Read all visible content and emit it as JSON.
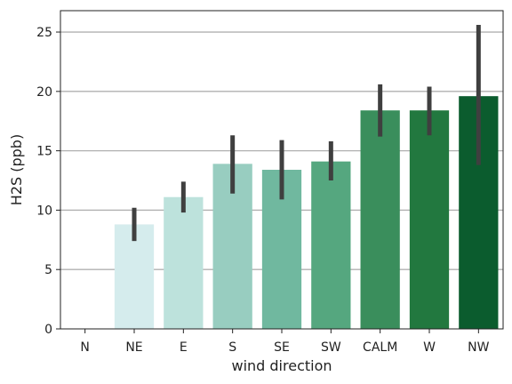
{
  "chart_data": {
    "type": "bar",
    "title": "",
    "xlabel": "wind direction",
    "ylabel": "H2S (ppb)",
    "categories": [
      "N",
      "NE",
      "E",
      "S",
      "SE",
      "SW",
      "CALM",
      "W",
      "NW"
    ],
    "values": [
      0,
      8.8,
      11.1,
      13.9,
      13.4,
      14.1,
      18.4,
      18.4,
      19.6
    ],
    "error_low": [
      0,
      7.4,
      9.8,
      11.4,
      10.9,
      12.5,
      16.2,
      16.3,
      13.8
    ],
    "error_high": [
      0,
      10.2,
      12.4,
      16.3,
      15.9,
      15.8,
      20.6,
      20.4,
      25.6
    ],
    "ylim": [
      0,
      26.8
    ],
    "yticks": [
      0,
      5,
      10,
      15,
      20,
      25
    ],
    "grid": "y",
    "colors": [
      "#e5f5f9",
      "#d5eced",
      "#bde2dc",
      "#98cdc0",
      "#70b89f",
      "#55a77f",
      "#3a8e5c",
      "#22783f",
      "#0b5c2e"
    ],
    "error_color": "#3f3f3f",
    "grid_color": "#b0b0b0"
  }
}
